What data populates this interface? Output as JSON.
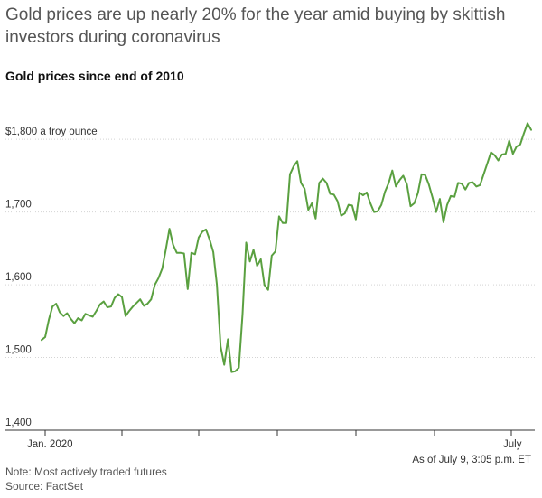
{
  "headline": "Gold prices are up nearly 20% for the year amid buying by skittish investors during coronavirus",
  "chart_data": {
    "type": "line",
    "title": "Gold prices since end of 2010",
    "y_unit_label": "a troy ounce",
    "ylim": [
      1400,
      1830
    ],
    "yticks": [
      {
        "value": 1400,
        "label": "1,400"
      },
      {
        "value": 1500,
        "label": "1,500"
      },
      {
        "value": 1600,
        "label": "1,600"
      },
      {
        "value": 1700,
        "label": "1,700"
      },
      {
        "value": 1800,
        "label": "$1,800 a troy ounce"
      }
    ],
    "xlabels": [
      "Jan. 2020",
      "July"
    ],
    "as_of": "As of July 9, 3:05 p.m. ET",
    "grid": true,
    "line_color": "#5aa040",
    "series": [
      {
        "values": [
          1524,
          1528,
          1552,
          1570,
          1574,
          1562,
          1557,
          1561,
          1553,
          1547,
          1554,
          1551,
          1560,
          1558,
          1556,
          1564,
          1573,
          1577,
          1569,
          1570,
          1582,
          1587,
          1583,
          1557,
          1564,
          1570,
          1575,
          1580,
          1571,
          1574,
          1580,
          1600,
          1609,
          1622,
          1648,
          1677,
          1655,
          1644,
          1644,
          1643,
          1594,
          1644,
          1642,
          1665,
          1673,
          1676,
          1662,
          1645,
          1600,
          1515,
          1490,
          1525,
          1480,
          1481,
          1486,
          1560,
          1658,
          1632,
          1648,
          1626,
          1635,
          1600,
          1593,
          1640,
          1646,
          1694,
          1685,
          1685,
          1752,
          1763,
          1770,
          1740,
          1732,
          1703,
          1712,
          1691,
          1740,
          1746,
          1740,
          1725,
          1724,
          1715,
          1695,
          1698,
          1710,
          1709,
          1690,
          1727,
          1723,
          1727,
          1712,
          1700,
          1701,
          1710,
          1728,
          1740,
          1757,
          1735,
          1744,
          1750,
          1738,
          1708,
          1712,
          1726,
          1752,
          1751,
          1738,
          1720,
          1700,
          1718,
          1686,
          1710,
          1722,
          1721,
          1740,
          1739,
          1731,
          1740,
          1741,
          1735,
          1737,
          1752,
          1767,
          1782,
          1778,
          1771,
          1779,
          1780,
          1798,
          1780,
          1790,
          1793,
          1808,
          1822,
          1813
        ]
      }
    ]
  },
  "notes": {
    "note": "Note: Most actively traded futures",
    "source": "Source: FactSet"
  }
}
